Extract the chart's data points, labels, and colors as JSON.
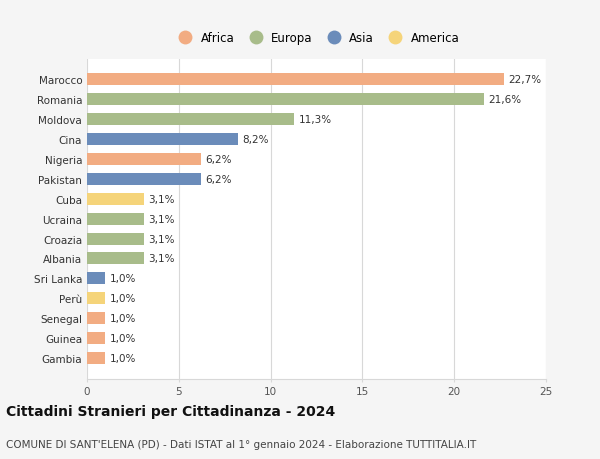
{
  "title": "Cittadini Stranieri per Cittadinanza - 2024",
  "subtitle": "COMUNE DI SANT'ELENA (PD) - Dati ISTAT al 1° gennaio 2024 - Elaborazione TUTTITALIA.IT",
  "categories": [
    "Marocco",
    "Romania",
    "Moldova",
    "Cina",
    "Nigeria",
    "Pakistan",
    "Cuba",
    "Ucraina",
    "Croazia",
    "Albania",
    "Sri Lanka",
    "Perù",
    "Senegal",
    "Guinea",
    "Gambia"
  ],
  "values": [
    22.7,
    21.6,
    11.3,
    8.2,
    6.2,
    6.2,
    3.1,
    3.1,
    3.1,
    3.1,
    1.0,
    1.0,
    1.0,
    1.0,
    1.0
  ],
  "labels": [
    "22,7%",
    "21,6%",
    "11,3%",
    "8,2%",
    "6,2%",
    "6,2%",
    "3,1%",
    "3,1%",
    "3,1%",
    "3,1%",
    "1,0%",
    "1,0%",
    "1,0%",
    "1,0%",
    "1,0%"
  ],
  "colors": [
    "#f2ac82",
    "#a8bc8a",
    "#a8bc8a",
    "#6b8cba",
    "#f2ac82",
    "#6b8cba",
    "#f5d47a",
    "#a8bc8a",
    "#a8bc8a",
    "#a8bc8a",
    "#6b8cba",
    "#f5d47a",
    "#f2ac82",
    "#f2ac82",
    "#f2ac82"
  ],
  "legend_labels": [
    "Africa",
    "Europa",
    "Asia",
    "America"
  ],
  "legend_colors": [
    "#f2ac82",
    "#a8bc8a",
    "#6b8cba",
    "#f5d47a"
  ],
  "xlim": [
    0,
    25
  ],
  "xticks": [
    0,
    5,
    10,
    15,
    20,
    25
  ],
  "background_color": "#f5f5f5",
  "bar_background": "#ffffff",
  "grid_color": "#d8d8d8",
  "label_fontsize": 7.5,
  "title_fontsize": 10,
  "subtitle_fontsize": 7.5,
  "tick_fontsize": 7.5,
  "legend_fontsize": 8.5,
  "bar_height": 0.6
}
